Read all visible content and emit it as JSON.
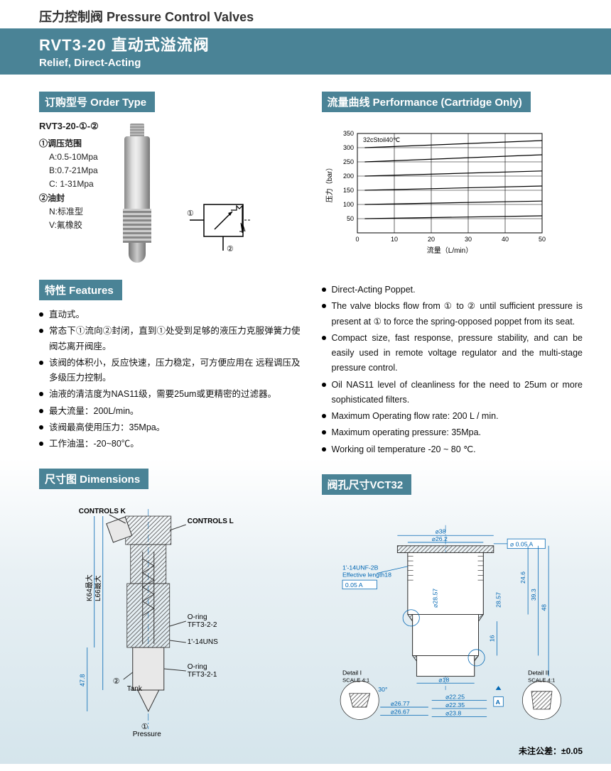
{
  "header": {
    "category": "压力控制阀 Pressure Control Valves",
    "model": "RVT3-20 直动式溢流阀",
    "subtitle": "Relief, Direct-Acting"
  },
  "sections": {
    "order": "订购型号 Order Type",
    "perf": "流量曲线 Performance (Cartridge Only)",
    "feat": "特性 Features",
    "dims": "尺寸图 Dimensions",
    "cavity": "阀孔尺寸VCT32"
  },
  "order": {
    "model": "RVT3-20-①-②",
    "opt1_title": "①调压范围",
    "opt1_a": "A:0.5-10Mpa",
    "opt1_b": "B:0.7-21Mpa",
    "opt1_c": "C: 1-31Mpa",
    "opt2_title": "②油封",
    "opt2_n": "N:标准型",
    "opt2_v": "V:氟橡胶"
  },
  "schematic": {
    "port1": "①",
    "port2": "②"
  },
  "chart": {
    "type": "line",
    "title": "32cStoil40℃",
    "xlabel": "流量（L/min）",
    "ylabel": "压力（bar）",
    "xlim": [
      0,
      50
    ],
    "xtick_step": 10,
    "ylim": [
      0,
      350
    ],
    "ytick_step": 50,
    "grid_color": "#000000",
    "background_color": "#ffffff",
    "line_color": "#000000",
    "line_width": 1.2,
    "series": [
      {
        "points": [
          [
            2,
            50
          ],
          [
            50,
            60
          ]
        ]
      },
      {
        "points": [
          [
            2,
            100
          ],
          [
            50,
            112
          ]
        ]
      },
      {
        "points": [
          [
            2,
            150
          ],
          [
            50,
            165
          ]
        ]
      },
      {
        "points": [
          [
            2,
            200
          ],
          [
            50,
            218
          ]
        ]
      },
      {
        "points": [
          [
            2,
            250
          ],
          [
            50,
            275
          ]
        ]
      },
      {
        "points": [
          [
            2,
            300
          ],
          [
            50,
            325
          ]
        ]
      }
    ]
  },
  "features_cn": [
    "直动式。",
    "常态下①流向②封闭，直到①处受到足够的液压力克服弹簧力使阀芯离开阀座。",
    "该阀的体积小，反应快速，压力稳定，可方便应用在 远程调压及多级压力控制。",
    "油液的清洁度为NAS11级，需要25um或更精密的过滤器。",
    "最大流量：200L/min。",
    "该阀最高使用压力：35Mpa。",
    "工作油温：-20~80℃。"
  ],
  "features_en": [
    "Direct-Acting Poppet.",
    "The valve blocks flow from ① to ② until sufficient pressure is present at ① to force the spring-opposed poppet from its seat.",
    "Compact size, fast response, pressure stability, and can be easily used in remote voltage regulator and the multi-stage pressure control.",
    "Oil NAS11 level of cleanliness for the need to 25um or more sophisticated filters.",
    "Maximum Operating flow rate: 200 L / min.",
    "Maximum operating pressure: 35Mpa.",
    "Working oil temperature -20 ~ 80 ℃."
  ],
  "dim_left": {
    "controls_k": "CONTROLS K",
    "controls_l": "CONTROLS L",
    "k64": "K64最大",
    "l66": "L66最大",
    "oring1": "O-ring",
    "oring1_part": "TFT3-2-2",
    "thread": "1'-14UNS",
    "oring2": "O-ring",
    "oring2_part": "TFT3-2-1",
    "tank": "Tank",
    "pressure": "Pressure",
    "h": "47.8",
    "p1": "①",
    "p2": "②"
  },
  "dim_right": {
    "d38": "⌀38",
    "d26_2": "⌀26.2",
    "tol1": "⌀ 0.05 A",
    "thread": "1'-14UNF-2B",
    "eff": "Effective length18",
    "tol2": "0.05 A",
    "h28_57": "28.57",
    "d28_57": "⌀28.57",
    "h24_6": "24.6",
    "h39_3": "39.3",
    "h48": "48",
    "h16": "16",
    "d18": "⌀18",
    "ang30": "30°",
    "d26_77": "⌀26.77",
    "d26_67": "⌀26.67",
    "d22_25": "⌀22.25",
    "d22_35": "⌀22.35",
    "d23_8": "⌀23.8",
    "datum": "A",
    "detail1": "Detail I",
    "detail2": "Detail II",
    "scale": "SCALE 4:1",
    "note": "未注公差：±0.05"
  },
  "colors": {
    "band": "#4a8396",
    "dim": "#0066b3",
    "text": "#111111"
  }
}
